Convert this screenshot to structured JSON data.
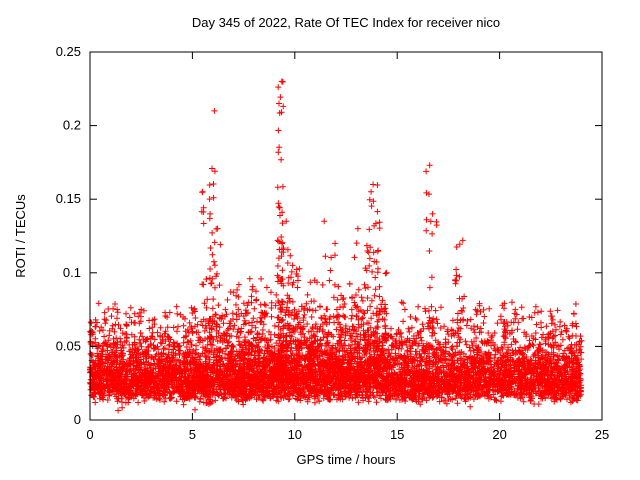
{
  "chart_data": {
    "type": "scatter",
    "title": "Day 345 of 2022, Rate Of TEC Index for receiver nico",
    "xlabel": "GPS time / hours",
    "ylabel": "ROTI / TECUs",
    "marker": "plus",
    "marker_color": "#ff0000",
    "axis_color": "#000000",
    "grid": false,
    "legend": "none",
    "xlim": [
      0,
      25
    ],
    "ylim": [
      0,
      0.25
    ],
    "xticks": [
      0,
      5,
      10,
      15,
      20,
      25
    ],
    "xtick_labels": [
      "0",
      "5",
      "10",
      "15",
      "20",
      "25"
    ],
    "yticks": [
      0,
      0.05,
      0.1,
      0.15,
      0.2,
      0.25
    ],
    "ytick_labels": [
      "0",
      "0.05",
      "0.1",
      "0.15",
      "0.2",
      "0.25"
    ],
    "x_data_range": [
      0,
      24
    ],
    "seed": 345,
    "baseline": {
      "n": 6200,
      "y_floor": 0.006,
      "y_scale": 0.024,
      "sigma": 0.5,
      "y_max": 0.08
    },
    "spikes": [
      {
        "t": 0.15,
        "width": 0.15,
        "peak": 0.068,
        "n": 12
      },
      {
        "t": 1.0,
        "width": 0.3,
        "peak": 0.062,
        "n": 10
      },
      {
        "t": 2.1,
        "width": 0.2,
        "peak": 0.066,
        "n": 10
      },
      {
        "t": 3.0,
        "width": 0.3,
        "peak": 0.063,
        "n": 10
      },
      {
        "t": 3.9,
        "width": 0.25,
        "peak": 0.073,
        "n": 14
      },
      {
        "t": 4.6,
        "width": 0.2,
        "peak": 0.07,
        "n": 12
      },
      {
        "t": 5.6,
        "width": 0.15,
        "peak": 0.155,
        "n": 22
      },
      {
        "t": 6.0,
        "width": 0.18,
        "peak": 0.21,
        "n": 45
      },
      {
        "t": 6.3,
        "width": 0.15,
        "peak": 0.13,
        "n": 18
      },
      {
        "t": 7.0,
        "width": 0.3,
        "peak": 0.092,
        "n": 22
      },
      {
        "t": 7.5,
        "width": 1.2,
        "peak": 0.075,
        "n": 80
      },
      {
        "t": 7.6,
        "width": 0.25,
        "peak": 0.08,
        "n": 15
      },
      {
        "t": 8.1,
        "width": 0.3,
        "peak": 0.096,
        "n": 22
      },
      {
        "t": 8.7,
        "width": 0.25,
        "peak": 0.09,
        "n": 18
      },
      {
        "t": 9.3,
        "width": 0.15,
        "peak": 0.23,
        "n": 70
      },
      {
        "t": 9.65,
        "width": 0.2,
        "peak": 0.135,
        "n": 35
      },
      {
        "t": 10.0,
        "width": 0.25,
        "peak": 0.105,
        "n": 28
      },
      {
        "t": 10.5,
        "width": 0.25,
        "peak": 0.085,
        "n": 18
      },
      {
        "t": 10.9,
        "width": 0.25,
        "peak": 0.095,
        "n": 20
      },
      {
        "t": 11.5,
        "width": 3.2,
        "peak": 0.085,
        "n": 260
      },
      {
        "t": 11.6,
        "width": 0.25,
        "peak": 0.135,
        "n": 30
      },
      {
        "t": 12.2,
        "width": 0.25,
        "peak": 0.12,
        "n": 26
      },
      {
        "t": 12.9,
        "width": 0.25,
        "peak": 0.13,
        "n": 26
      },
      {
        "t": 13.6,
        "width": 0.2,
        "peak": 0.155,
        "n": 35
      },
      {
        "t": 13.95,
        "width": 0.2,
        "peak": 0.16,
        "n": 40
      },
      {
        "t": 14.3,
        "width": 0.2,
        "peak": 0.1,
        "n": 20
      },
      {
        "t": 15.0,
        "width": 0.3,
        "peak": 0.08,
        "n": 14
      },
      {
        "t": 16.5,
        "width": 0.1,
        "peak": 0.173,
        "n": 12
      },
      {
        "t": 16.75,
        "width": 0.2,
        "peak": 0.14,
        "n": 22
      },
      {
        "t": 18.05,
        "width": 0.22,
        "peak": 0.122,
        "n": 26
      },
      {
        "t": 19.0,
        "width": 0.3,
        "peak": 0.075,
        "n": 12
      },
      {
        "t": 20.4,
        "width": 0.3,
        "peak": 0.08,
        "n": 14
      },
      {
        "t": 21.0,
        "width": 0.3,
        "peak": 0.075,
        "n": 12
      },
      {
        "t": 22.5,
        "width": 0.3,
        "peak": 0.068,
        "n": 10
      },
      {
        "t": 23.8,
        "width": 0.2,
        "peak": 0.072,
        "n": 10
      }
    ]
  }
}
